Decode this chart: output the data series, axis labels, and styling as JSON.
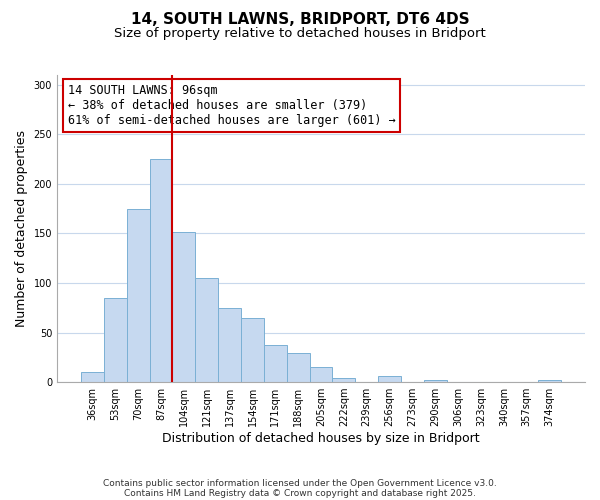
{
  "title": "14, SOUTH LAWNS, BRIDPORT, DT6 4DS",
  "subtitle": "Size of property relative to detached houses in Bridport",
  "xlabel": "Distribution of detached houses by size in Bridport",
  "ylabel": "Number of detached properties",
  "categories": [
    "36sqm",
    "53sqm",
    "70sqm",
    "87sqm",
    "104sqm",
    "121sqm",
    "137sqm",
    "154sqm",
    "171sqm",
    "188sqm",
    "205sqm",
    "222sqm",
    "239sqm",
    "256sqm",
    "273sqm",
    "290sqm",
    "306sqm",
    "323sqm",
    "340sqm",
    "357sqm",
    "374sqm"
  ],
  "values": [
    10,
    85,
    175,
    225,
    152,
    105,
    75,
    65,
    37,
    29,
    15,
    4,
    0,
    6,
    0,
    2,
    0,
    0,
    0,
    0,
    2
  ],
  "bar_color": "#c6d9f0",
  "bar_edge_color": "#7ab0d4",
  "vline_x": 3.5,
  "vline_color": "#cc0000",
  "annotation_text": "14 SOUTH LAWNS: 96sqm\n← 38% of detached houses are smaller (379)\n61% of semi-detached houses are larger (601) →",
  "annotation_box_color": "#ffffff",
  "annotation_box_edge": "#cc0000",
  "ylim": [
    0,
    310
  ],
  "yticks": [
    0,
    50,
    100,
    150,
    200,
    250,
    300
  ],
  "footer_line1": "Contains HM Land Registry data © Crown copyright and database right 2025.",
  "footer_line2": "Contains public sector information licensed under the Open Government Licence v3.0.",
  "bg_color": "#ffffff",
  "grid_color": "#c8d8ec",
  "title_fontsize": 11,
  "subtitle_fontsize": 9.5,
  "axis_label_fontsize": 9,
  "tick_fontsize": 7,
  "annotation_fontsize": 8.5,
  "footer_fontsize": 6.5
}
